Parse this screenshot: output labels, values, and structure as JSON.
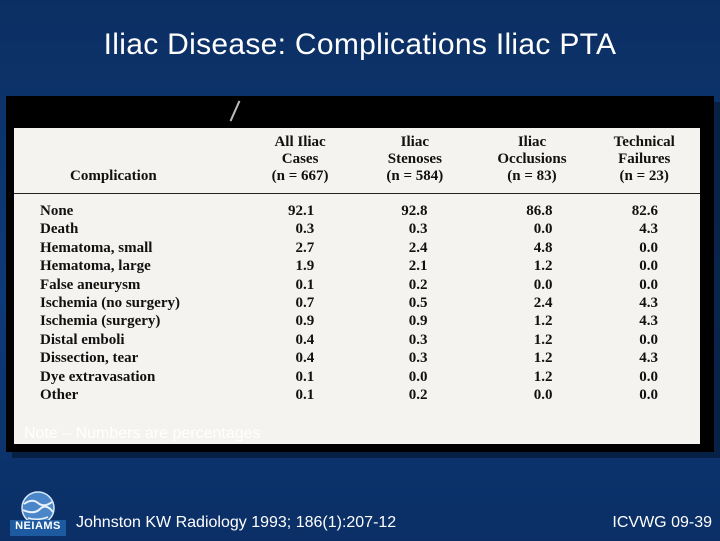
{
  "slide": {
    "title": "Iliac Disease: Complications Iliac PTA",
    "note": "Note – Numbers are percentages",
    "citation": "Johnston KW  Radiology 1993; 186(1):207-12",
    "code": "ICVWG 09-39",
    "logo_text": "NEIAMS"
  },
  "table": {
    "headers": [
      {
        "lines": [
          "Complication"
        ]
      },
      {
        "lines": [
          "All Iliac",
          "Cases",
          "(n = 667)"
        ]
      },
      {
        "lines": [
          "Iliac",
          "Stenoses",
          "(n = 584)"
        ]
      },
      {
        "lines": [
          "Iliac",
          "Occlusions",
          "(n = 83)"
        ]
      },
      {
        "lines": [
          "Technical",
          "Failures",
          "(n = 23)"
        ]
      }
    ],
    "rows": [
      [
        "None",
        "92.1",
        "92.8",
        "86.8",
        "82.6"
      ],
      [
        "Death",
        "0.3",
        "0.3",
        "0.0",
        "4.3"
      ],
      [
        "Hematoma, small",
        "2.7",
        "2.4",
        "4.8",
        "0.0"
      ],
      [
        "Hematoma, large",
        "1.9",
        "2.1",
        "1.2",
        "0.0"
      ],
      [
        "False aneurysm",
        "0.1",
        "0.2",
        "0.0",
        "0.0"
      ],
      [
        "Ischemia (no surgery)",
        "0.7",
        "0.5",
        "2.4",
        "4.3"
      ],
      [
        "Ischemia (surgery)",
        "0.9",
        "0.9",
        "1.2",
        "4.3"
      ],
      [
        "Distal emboli",
        "0.4",
        "0.3",
        "1.2",
        "0.0"
      ],
      [
        "Dissection, tear",
        "0.4",
        "0.3",
        "1.2",
        "4.3"
      ],
      [
        "Dye extravasation",
        "0.1",
        "0.0",
        "1.2",
        "0.0"
      ],
      [
        "Other",
        "0.1",
        "0.2",
        "0.0",
        "0.0"
      ]
    ]
  },
  "colors": {
    "background": "#0d3a78",
    "text": "#ffffff",
    "paper": "#f4f3ef"
  }
}
